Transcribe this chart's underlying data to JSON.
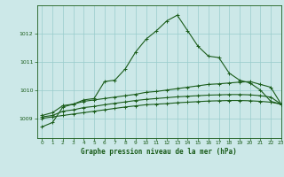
{
  "title": "Graphe pression niveau de la mer (hPa)",
  "bg_color": "#cce8e8",
  "grid_color": "#99cccc",
  "line_color": "#1a5c1a",
  "xlim": [
    -0.5,
    23
  ],
  "ylim": [
    1008.3,
    1013.0
  ],
  "yticks": [
    1009,
    1010,
    1011,
    1012
  ],
  "xticks": [
    0,
    1,
    2,
    3,
    4,
    5,
    6,
    7,
    8,
    9,
    10,
    11,
    12,
    13,
    14,
    15,
    16,
    17,
    18,
    19,
    20,
    21,
    22,
    23
  ],
  "series": [
    [
      1008.7,
      1008.85,
      1009.4,
      1009.5,
      1009.65,
      1009.7,
      1010.3,
      1010.35,
      1010.75,
      1011.35,
      1011.8,
      1012.1,
      1012.45,
      1012.65,
      1012.1,
      1011.55,
      1011.2,
      1011.15,
      1010.6,
      1010.35,
      1010.25,
      1010.0,
      1009.6,
      1009.5
    ],
    [
      1009.1,
      1009.2,
      1009.45,
      1009.5,
      1009.6,
      1009.65,
      1009.7,
      1009.75,
      1009.8,
      1009.85,
      1009.92,
      1009.95,
      1010.0,
      1010.05,
      1010.1,
      1010.15,
      1010.2,
      1010.22,
      1010.25,
      1010.28,
      1010.3,
      1010.2,
      1010.1,
      1009.5
    ],
    [
      1009.05,
      1009.1,
      1009.25,
      1009.3,
      1009.38,
      1009.42,
      1009.48,
      1009.53,
      1009.58,
      1009.63,
      1009.67,
      1009.7,
      1009.73,
      1009.76,
      1009.78,
      1009.8,
      1009.82,
      1009.83,
      1009.84,
      1009.84,
      1009.83,
      1009.8,
      1009.75,
      1009.5
    ],
    [
      1009.0,
      1009.05,
      1009.1,
      1009.15,
      1009.2,
      1009.25,
      1009.3,
      1009.35,
      1009.4,
      1009.44,
      1009.48,
      1009.5,
      1009.52,
      1009.55,
      1009.57,
      1009.59,
      1009.61,
      1009.62,
      1009.63,
      1009.63,
      1009.62,
      1009.6,
      1009.57,
      1009.5
    ]
  ]
}
